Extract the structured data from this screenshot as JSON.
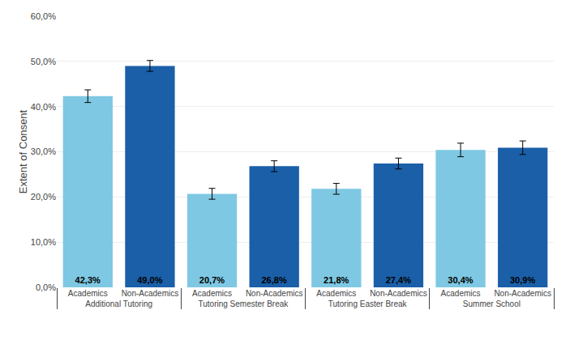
{
  "chart_data": {
    "type": "bar",
    "ylabel": "Extent of Consent",
    "categories": [
      "Additional Tutoring",
      "Tutoring Semester Break",
      "Tutoring Easter Break",
      "Summer School"
    ],
    "series": [
      {
        "name": "Academics",
        "color": "#7EC8E3",
        "values": [
          42.3,
          20.7,
          21.8,
          30.4
        ],
        "errors": [
          1.4,
          1.2,
          1.2,
          1.5
        ],
        "value_labels": [
          "42,3%",
          "20,7%",
          "21,8%",
          "30,4%"
        ]
      },
      {
        "name": "Non-Academics",
        "color": "#1A5FA8",
        "values": [
          49.0,
          26.8,
          27.4,
          30.9
        ],
        "errors": [
          1.2,
          1.2,
          1.2,
          1.5
        ],
        "value_labels": [
          "49,0%",
          "26,8%",
          "27,4%",
          "30,9%"
        ]
      }
    ],
    "ylim": [
      0,
      60
    ],
    "yticks": [
      {
        "value": 0,
        "label": "0,0%"
      },
      {
        "value": 10,
        "label": "10,0%"
      },
      {
        "value": 20,
        "label": "20,0%"
      },
      {
        "value": 30,
        "label": "30,0%"
      },
      {
        "value": 40,
        "label": "40,0%"
      },
      {
        "value": 50,
        "label": "50,0%"
      },
      {
        "value": 60,
        "label": "60,0%"
      }
    ],
    "grid": true,
    "data_labels": true
  }
}
